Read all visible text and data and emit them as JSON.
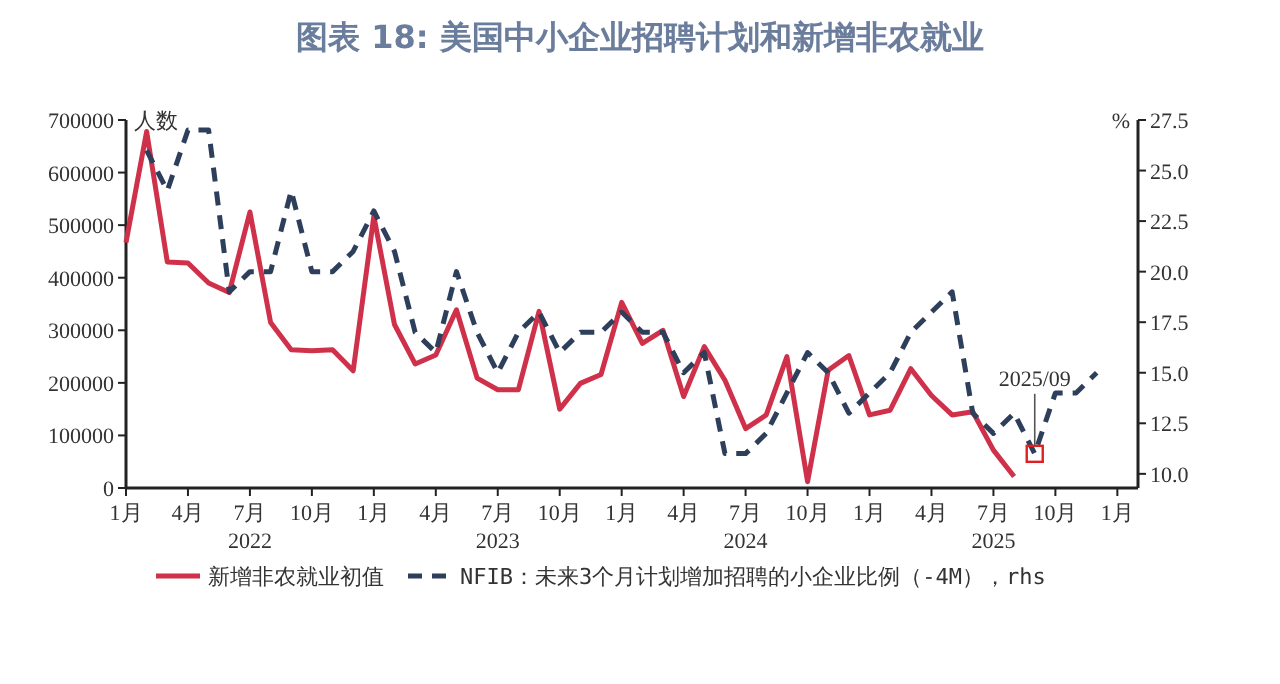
{
  "chart_data": {
    "type": "line",
    "title": "图表 18: 美国中小企业招聘计划和新增非农就业",
    "ylabel": "人数",
    "y2label": "%",
    "xlim": [
      "2022-01",
      "2026-02"
    ],
    "xticks": [
      {
        "value": "2022-01",
        "label": "1月"
      },
      {
        "value": "2022-04",
        "label": "4月"
      },
      {
        "value": "2022-07",
        "label": "7月\n2022"
      },
      {
        "value": "2022-10",
        "label": "10月"
      },
      {
        "value": "2023-01",
        "label": "1月"
      },
      {
        "value": "2023-04",
        "label": "4月"
      },
      {
        "value": "2023-07",
        "label": "7月\n2023"
      },
      {
        "value": "2023-10",
        "label": "10月"
      },
      {
        "value": "2024-01",
        "label": "1月"
      },
      {
        "value": "2024-04",
        "label": "4月"
      },
      {
        "value": "2024-07",
        "label": "7月\n2024"
      },
      {
        "value": "2024-10",
        "label": "10月"
      },
      {
        "value": "2025-01",
        "label": "1月"
      },
      {
        "value": "2025-04",
        "label": "4月"
      },
      {
        "value": "2025-07",
        "label": "7月\n2025"
      },
      {
        "value": "2025-10",
        "label": "10月"
      },
      {
        "value": "2026-01",
        "label": "1月"
      }
    ],
    "ylim": [
      0,
      700000
    ],
    "yticks": [
      0,
      100000,
      200000,
      300000,
      400000,
      500000,
      600000,
      700000
    ],
    "y2lim": [
      9.3,
      27.5
    ],
    "y2ticks": [
      {
        "value": 10,
        "label": "10.0"
      },
      12.5,
      {
        "value": 15,
        "label": "15.0"
      },
      17.5,
      {
        "value": 20,
        "label": "20.0"
      },
      22.5,
      {
        "value": 25,
        "label": "25.0"
      },
      27.5
    ],
    "legend": "bottom",
    "grid": false,
    "series": [
      {
        "name": "新增非农就业初值",
        "color": "#d0314a",
        "line_style": "solid",
        "x": [
          "2022-01",
          "2022-02",
          "2022-03",
          "2022-04",
          "2022-05",
          "2022-06",
          "2022-07",
          "2022-08",
          "2022-09",
          "2022-10",
          "2022-11",
          "2022-12",
          "2023-01",
          "2023-02",
          "2023-03",
          "2023-04",
          "2023-05",
          "2023-06",
          "2023-07",
          "2023-08",
          "2023-09",
          "2023-10",
          "2023-11",
          "2023-12",
          "2024-01",
          "2024-02",
          "2024-03",
          "2024-04",
          "2024-05",
          "2024-06",
          "2024-07",
          "2024-08",
          "2024-09",
          "2024-10",
          "2024-11",
          "2024-12",
          "2025-01",
          "2025-02",
          "2025-03",
          "2025-04",
          "2025-05",
          "2025-06",
          "2025-07",
          "2025-08"
        ],
        "values": [
          467000,
          678000,
          430000,
          428000,
          390000,
          372000,
          525000,
          315000,
          263000,
          261000,
          263000,
          223000,
          517000,
          311000,
          236000,
          253000,
          339000,
          209000,
          187000,
          187000,
          336000,
          150000,
          199000,
          216000,
          353000,
          275000,
          300000,
          174000,
          269000,
          205000,
          113000,
          139000,
          250000,
          12000,
          224000,
          252000,
          139000,
          148000,
          227000,
          176000,
          139000,
          145000,
          72000,
          22000
        ]
      },
      {
        "name": "NFIB：未来3个月计划增加招聘的小企业比例（-4M），rhs",
        "color": "#2e3f5c",
        "line_style": "dashed",
        "axis": "y2",
        "x": [
          "2022-02",
          "2022-03",
          "2022-04",
          "2022-05",
          "2022-06",
          "2022-07",
          "2022-08",
          "2022-09",
          "2022-10",
          "2022-11",
          "2022-12",
          "2023-01",
          "2023-02",
          "2023-03",
          "2023-04",
          "2023-05",
          "2023-06",
          "2023-07",
          "2023-08",
          "2023-09",
          "2023-10",
          "2023-11",
          "2023-12",
          "2024-01",
          "2024-02",
          "2024-03",
          "2024-04",
          "2024-05",
          "2024-06",
          "2024-07",
          "2024-08",
          "2024-09",
          "2024-10",
          "2024-11",
          "2024-12",
          "2025-01",
          "2025-02",
          "2025-03",
          "2025-04",
          "2025-05",
          "2025-06",
          "2025-07",
          "2025-08",
          "2025-09",
          "2025-10",
          "2025-11",
          "2025-12"
        ],
        "values": [
          26,
          24,
          27,
          27,
          19,
          20,
          20,
          24,
          20,
          20,
          21,
          23,
          21,
          17,
          16,
          20,
          17,
          15,
          17,
          18,
          16,
          17,
          17,
          18,
          17,
          17,
          15,
          16,
          11,
          11,
          12,
          14,
          16,
          15,
          13,
          14,
          15,
          17,
          18,
          19,
          13,
          12,
          13,
          11,
          14,
          14,
          15
        ]
      }
    ],
    "annotations": [
      {
        "text": "2025/09",
        "x": "2025-09",
        "y": 65000
      }
    ]
  }
}
